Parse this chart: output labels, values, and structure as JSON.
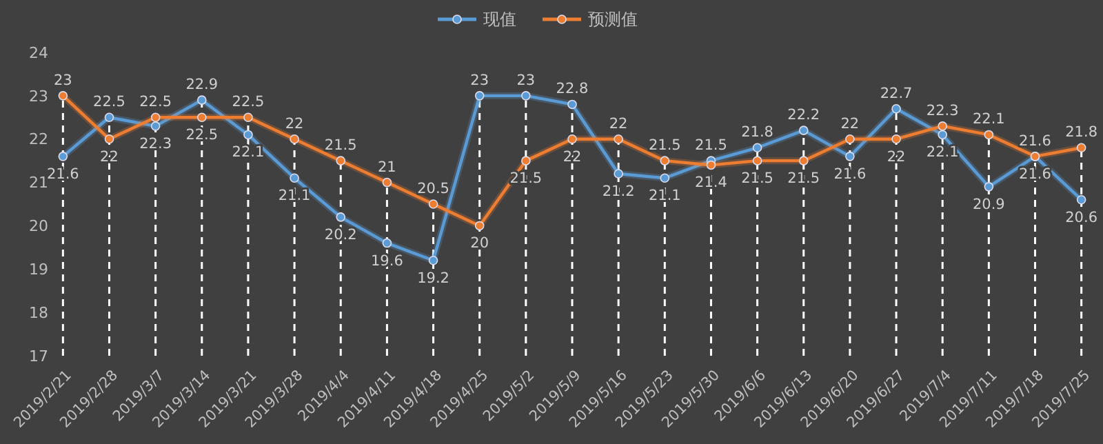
{
  "chart_data": {
    "type": "line",
    "categories": [
      "2019/2/21",
      "2019/2/28",
      "2019/3/7",
      "2019/3/14",
      "2019/3/21",
      "2019/3/28",
      "2019/4/4",
      "2019/4/11",
      "2019/4/18",
      "2019/4/25",
      "2019/5/2",
      "2019/5/9",
      "2019/5/16",
      "2019/5/23",
      "2019/5/30",
      "2019/6/6",
      "2019/6/13",
      "2019/6/20",
      "2019/6/27",
      "2019/7/4",
      "2019/7/11",
      "2019/7/18",
      "2019/7/25"
    ],
    "series": [
      {
        "name": "现值",
        "color": "#5b9bd5",
        "values": [
          21.6,
          22.5,
          22.3,
          22.9,
          22.1,
          21.1,
          20.2,
          19.6,
          19.2,
          23,
          23,
          22.8,
          21.2,
          21.1,
          21.5,
          21.8,
          22.2,
          21.6,
          22.7,
          22.1,
          20.9,
          21.6,
          20.6
        ]
      },
      {
        "name": "预测值",
        "color": "#ed7d31",
        "values": [
          23,
          22,
          22.5,
          22.5,
          22.5,
          22,
          21.5,
          21,
          20.5,
          20,
          21.5,
          22,
          22,
          21.5,
          21.4,
          21.5,
          21.5,
          22,
          22,
          22.3,
          22.1,
          21.6,
          21.8
        ]
      }
    ],
    "ylim": [
      17,
      24
    ],
    "yticks": [
      17,
      18,
      19,
      20,
      21,
      22,
      23,
      24
    ],
    "grid": "x",
    "legend": "top",
    "data_labels": true,
    "marker": "circle",
    "line_style": "solid"
  }
}
